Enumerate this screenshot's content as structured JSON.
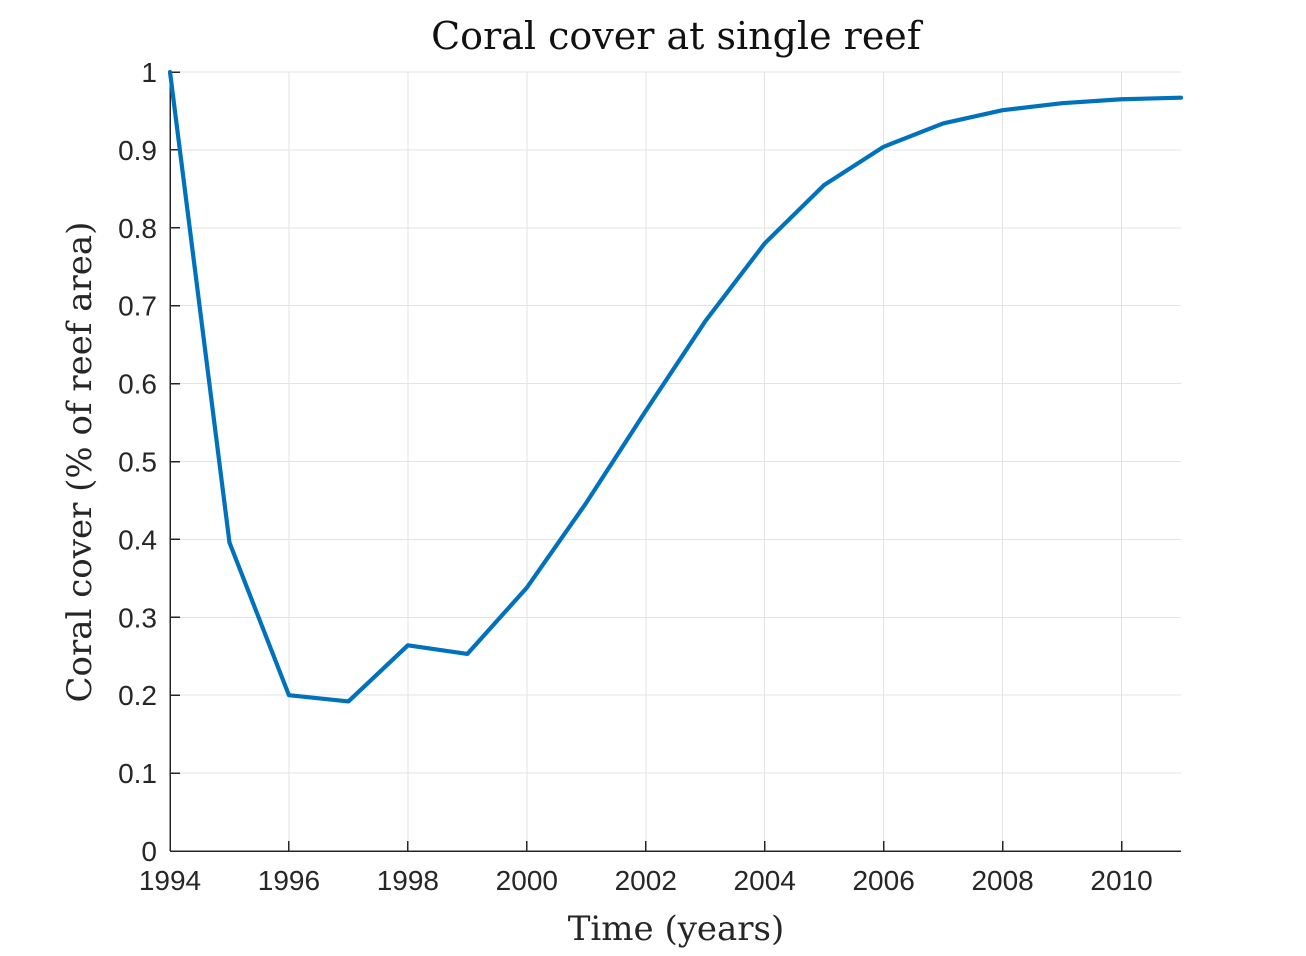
{
  "chart_data": {
    "type": "line",
    "title": "Coral cover at single reef",
    "xlabel": "Time (years)",
    "ylabel": "Coral cover (% of reef area)",
    "xlim": [
      1994,
      2011
    ],
    "ylim": [
      0,
      1
    ],
    "xticks": [
      1994,
      1996,
      1998,
      2000,
      2002,
      2004,
      2006,
      2008,
      2010
    ],
    "xtick_labels": [
      "1994",
      "1996",
      "1998",
      "2000",
      "2002",
      "2004",
      "2006",
      "2008",
      "2010"
    ],
    "yticks": [
      0,
      0.1,
      0.2,
      0.3,
      0.4,
      0.5,
      0.6,
      0.7,
      0.8,
      0.9,
      1
    ],
    "ytick_labels": [
      "0",
      "0.1",
      "0.2",
      "0.3",
      "0.4",
      "0.5",
      "0.6",
      "0.7",
      "0.8",
      "0.9",
      "1"
    ],
    "grid": true,
    "legend": false,
    "series": [
      {
        "color": "#0072BD",
        "x": [
          1994,
          1995,
          1996,
          1997,
          1998,
          1999,
          2000,
          2001,
          2002,
          2003,
          2004,
          2005,
          2006,
          2007,
          2008,
          2009,
          2010,
          2011
        ],
        "y": [
          1.0,
          0.396,
          0.2,
          0.192,
          0.264,
          0.253,
          0.338,
          0.447,
          0.565,
          0.68,
          0.78,
          0.855,
          0.904,
          0.934,
          0.951,
          0.96,
          0.965,
          0.967
        ]
      }
    ]
  }
}
